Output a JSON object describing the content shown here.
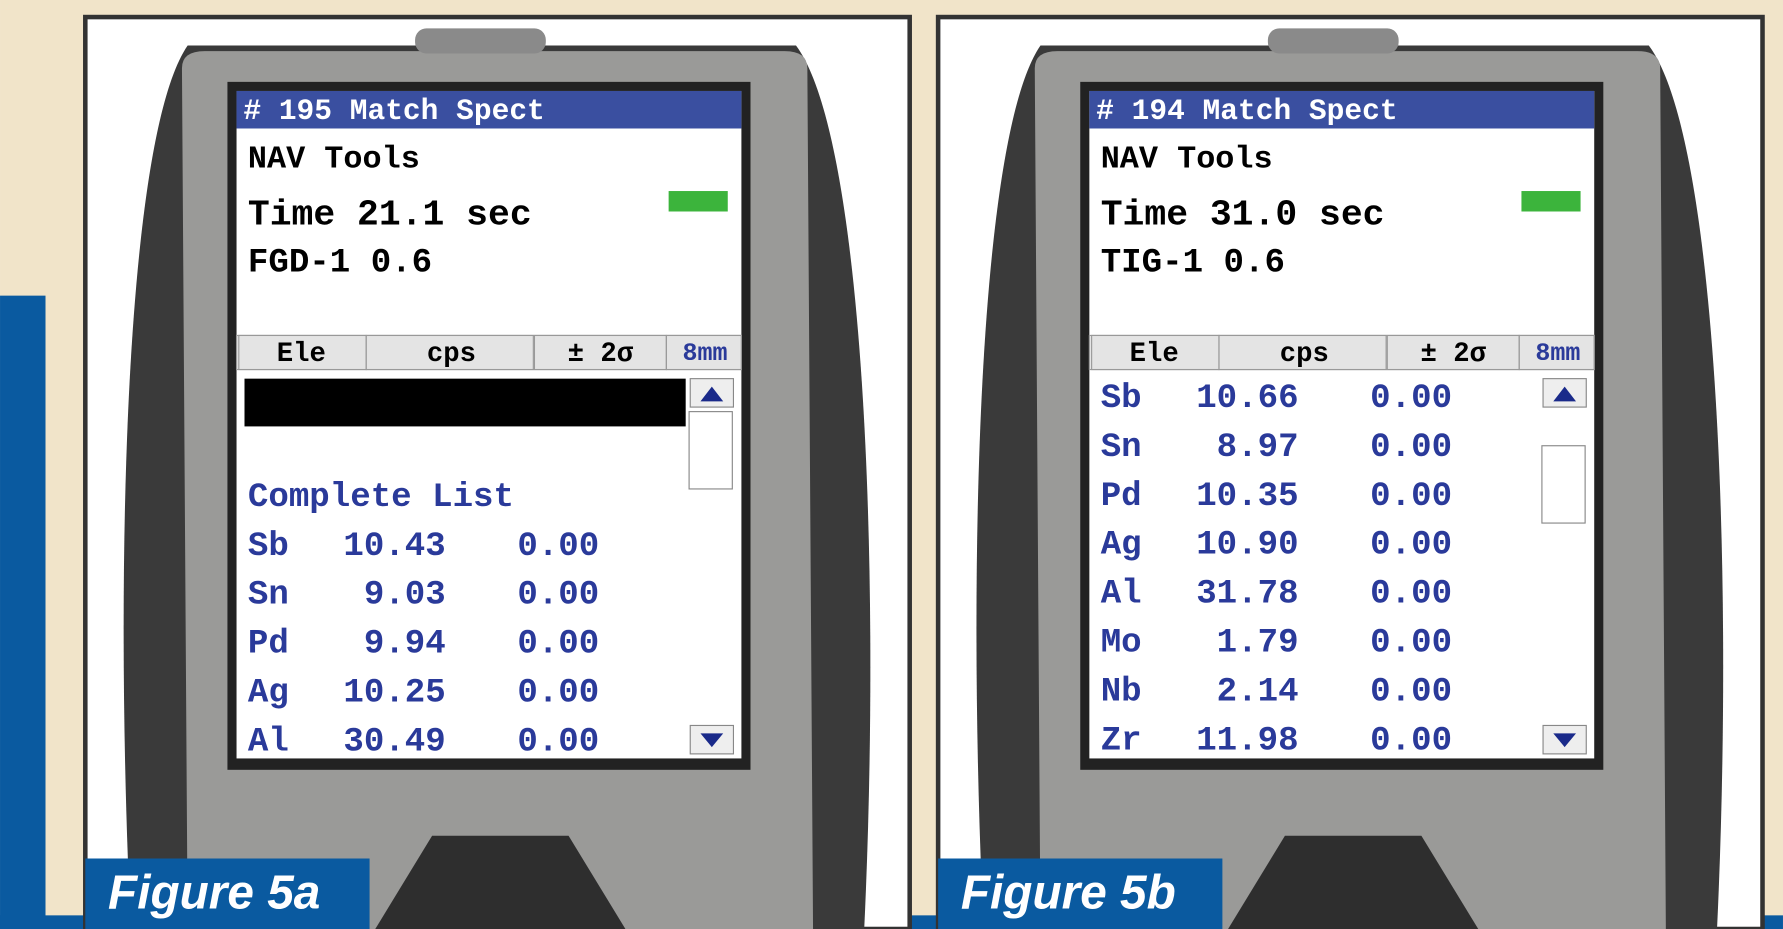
{
  "panels": [
    {
      "figure_label": "Figure 5a",
      "title": "# 195 Match Spect",
      "app": "NAV Tools",
      "time": "Time 21.1 sec",
      "reading": "FGD-1  0.6",
      "columns": [
        "Ele",
        "cps",
        "± 2σ",
        "8mm"
      ],
      "list_header": "Complete List",
      "rows": [
        [
          "Sb",
          "10.43",
          "0.00"
        ],
        [
          "Sn",
          "9.03",
          "0.00"
        ],
        [
          "Pd",
          "9.94",
          "0.00"
        ],
        [
          "Ag",
          "10.25",
          "0.00"
        ],
        [
          "Al",
          "30.49",
          "0.00"
        ]
      ]
    },
    {
      "figure_label": "Figure 5b",
      "title": "# 194 Match Spect",
      "app": "NAV Tools",
      "time": "Time 31.0 sec",
      "reading": "TIG-1  0.6",
      "columns": [
        "Ele",
        "cps",
        "± 2σ",
        "8mm"
      ],
      "rows": [
        [
          "Sb",
          "10.66",
          "0.00"
        ],
        [
          "Sn",
          "8.97",
          "0.00"
        ],
        [
          "Pd",
          "10.35",
          "0.00"
        ],
        [
          "Ag",
          "10.90",
          "0.00"
        ],
        [
          "Al",
          "31.78",
          "0.00"
        ],
        [
          "Mo",
          "1.79",
          "0.00"
        ],
        [
          "Nb",
          "2.14",
          "0.00"
        ],
        [
          "Zr",
          "11.98",
          "0.00"
        ]
      ]
    }
  ]
}
